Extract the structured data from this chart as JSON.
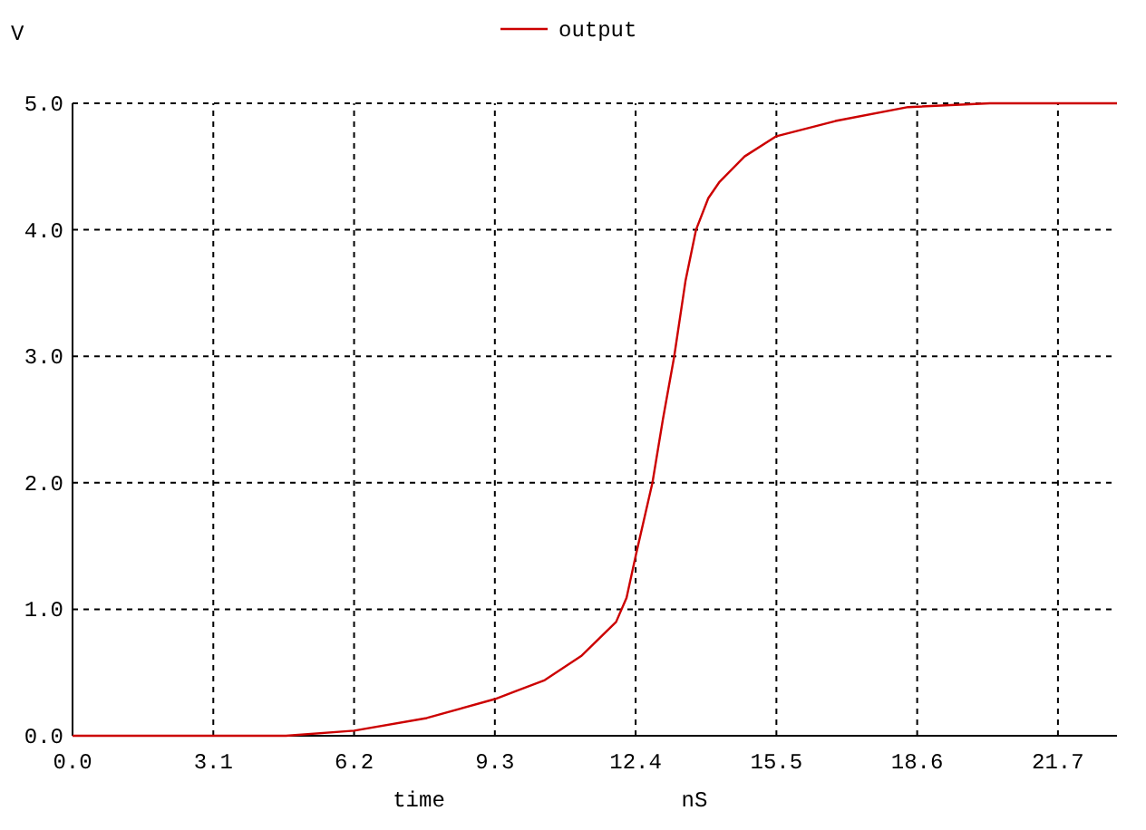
{
  "chart_data": {
    "type": "line",
    "ylabel": "V",
    "xlabel": "time",
    "annotations": [
      "nS"
    ],
    "xlim": [
      0,
      23
    ],
    "ylim": [
      0,
      5
    ],
    "xticks": [
      {
        "value": 0,
        "label": "0.0"
      },
      {
        "value": 3.1,
        "label": "3.1"
      },
      {
        "value": 6.2,
        "label": "6.2"
      },
      {
        "value": 9.3,
        "label": "9.3"
      },
      {
        "value": 12.4,
        "label": "12.4"
      },
      {
        "value": 15.5,
        "label": "15.5"
      },
      {
        "value": 18.6,
        "label": "18.6"
      },
      {
        "value": 21.7,
        "label": "21.7"
      }
    ],
    "yticks": [
      {
        "value": 0,
        "label": "0.0"
      },
      {
        "value": 1,
        "label": "1.0"
      },
      {
        "value": 2,
        "label": "2.0"
      },
      {
        "value": 3,
        "label": "3.0"
      },
      {
        "value": 4,
        "label": "4.0"
      },
      {
        "value": 5,
        "label": "5.0"
      }
    ],
    "grid": true,
    "legend": "top",
    "marker": "none",
    "line_style": "solid",
    "series": [
      {
        "name": "output",
        "color": "#cc0000",
        "x": [
          0,
          4.7,
          6.2,
          7.8,
          9.3,
          10.4,
          11.2,
          11.97,
          12.2,
          12.4,
          12.77,
          13.0,
          13.25,
          13.5,
          13.73,
          14.0,
          14.25,
          14.8,
          15.5,
          16.8,
          18.4,
          20.2,
          23
        ],
        "values": [
          0,
          0,
          0.04,
          0.14,
          0.29,
          0.44,
          0.63,
          0.9,
          1.09,
          1.42,
          2.0,
          2.5,
          3.0,
          3.6,
          4.0,
          4.25,
          4.38,
          4.58,
          4.74,
          4.86,
          4.97,
          5.0,
          5.0
        ]
      }
    ]
  }
}
